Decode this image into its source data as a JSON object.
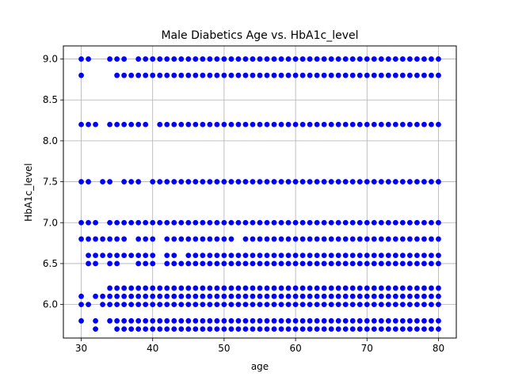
{
  "chart_data": {
    "type": "scatter",
    "title": "Male Diabetics Age vs. HbA1c_level",
    "xlabel": "age",
    "ylabel": "HbA1c_level",
    "xlim": [
      27.5,
      82.5
    ],
    "ylim": [
      5.59,
      9.16
    ],
    "xticks": [
      30,
      40,
      50,
      60,
      70,
      80
    ],
    "yticks": [
      6.0,
      6.5,
      7.0,
      7.5,
      8.0,
      8.5,
      9.0
    ],
    "xtick_labels": [
      "30",
      "40",
      "50",
      "60",
      "70",
      "80"
    ],
    "ytick_labels": [
      "6.0",
      "6.5",
      "7.0",
      "7.5",
      "8.0",
      "8.5",
      "9.0"
    ],
    "grid": true,
    "marker_color": "#0000ff",
    "levels": [
      {
        "y": 9.0,
        "ages": [
          30,
          31,
          34,
          35,
          36,
          38,
          39,
          40,
          41,
          42,
          43,
          44,
          45,
          46,
          47,
          48,
          49,
          50,
          51,
          52,
          53,
          54,
          55,
          56,
          57,
          58,
          59,
          60,
          61,
          62,
          63,
          64,
          65,
          66,
          67,
          68,
          69,
          70,
          71,
          72,
          73,
          74,
          75,
          76,
          77,
          78,
          79,
          80
        ]
      },
      {
        "y": 8.8,
        "ages": [
          30,
          35,
          36,
          37,
          38,
          39,
          40,
          41,
          42,
          43,
          44,
          45,
          46,
          47,
          48,
          49,
          50,
          51,
          52,
          53,
          54,
          55,
          56,
          57,
          58,
          59,
          60,
          61,
          62,
          63,
          64,
          65,
          66,
          67,
          68,
          69,
          70,
          71,
          72,
          73,
          74,
          75,
          76,
          77,
          78,
          79,
          80
        ]
      },
      {
        "y": 8.2,
        "ages": [
          30,
          31,
          32,
          34,
          35,
          36,
          37,
          38,
          39,
          41,
          42,
          43,
          44,
          45,
          46,
          47,
          48,
          49,
          50,
          51,
          52,
          53,
          54,
          55,
          56,
          57,
          58,
          59,
          60,
          61,
          62,
          63,
          64,
          65,
          66,
          67,
          68,
          69,
          70,
          71,
          72,
          73,
          74,
          75,
          76,
          77,
          78,
          79,
          80
        ]
      },
      {
        "y": 7.5,
        "ages": [
          30,
          31,
          33,
          34,
          36,
          37,
          38,
          40,
          41,
          42,
          43,
          44,
          45,
          46,
          47,
          48,
          49,
          50,
          51,
          52,
          53,
          54,
          55,
          56,
          57,
          58,
          59,
          60,
          61,
          62,
          63,
          64,
          65,
          66,
          67,
          68,
          69,
          70,
          71,
          72,
          73,
          74,
          75,
          76,
          77,
          78,
          79,
          80
        ]
      },
      {
        "y": 7.0,
        "ages": [
          30,
          31,
          32,
          34,
          35,
          36,
          37,
          38,
          39,
          40,
          41,
          42,
          43,
          44,
          45,
          46,
          47,
          48,
          49,
          50,
          51,
          52,
          53,
          54,
          55,
          56,
          57,
          58,
          59,
          60,
          61,
          62,
          63,
          64,
          65,
          66,
          67,
          68,
          69,
          70,
          71,
          72,
          73,
          74,
          75,
          76,
          77,
          78,
          79,
          80
        ]
      },
      {
        "y": 6.8,
        "ages": [
          30,
          31,
          32,
          33,
          34,
          35,
          36,
          38,
          39,
          40,
          42,
          43,
          44,
          45,
          46,
          47,
          48,
          49,
          50,
          51,
          53,
          54,
          55,
          56,
          57,
          58,
          59,
          60,
          61,
          62,
          63,
          64,
          65,
          66,
          67,
          68,
          69,
          70,
          71,
          72,
          73,
          74,
          75,
          76,
          77,
          78,
          79,
          80
        ]
      },
      {
        "y": 6.6,
        "ages": [
          31,
          32,
          33,
          34,
          35,
          36,
          37,
          38,
          39,
          40,
          42,
          43,
          45,
          46,
          47,
          48,
          49,
          50,
          51,
          52,
          53,
          54,
          55,
          56,
          57,
          58,
          59,
          60,
          61,
          62,
          63,
          64,
          65,
          66,
          67,
          68,
          69,
          70,
          71,
          72,
          73,
          74,
          75,
          76,
          77,
          78,
          79,
          80
        ]
      },
      {
        "y": 6.5,
        "ages": [
          31,
          32,
          34,
          35,
          38,
          39,
          40,
          42,
          43,
          44,
          45,
          46,
          47,
          48,
          49,
          50,
          51,
          52,
          53,
          54,
          55,
          56,
          57,
          58,
          59,
          60,
          61,
          62,
          63,
          64,
          65,
          66,
          67,
          68,
          69,
          70,
          71,
          72,
          73,
          74,
          75,
          76,
          77,
          78,
          79,
          80
        ]
      },
      {
        "y": 6.2,
        "ages": [
          34,
          35,
          36,
          37,
          38,
          39,
          40,
          41,
          42,
          43,
          44,
          45,
          46,
          47,
          48,
          49,
          50,
          51,
          52,
          53,
          54,
          55,
          56,
          57,
          58,
          59,
          60,
          61,
          62,
          63,
          64,
          65,
          66,
          67,
          68,
          69,
          70,
          71,
          72,
          73,
          74,
          75,
          76,
          77,
          78,
          79,
          80
        ]
      },
      {
        "y": 6.1,
        "ages": [
          30,
          32,
          33,
          34,
          35,
          36,
          37,
          38,
          39,
          40,
          41,
          42,
          43,
          44,
          45,
          46,
          47,
          48,
          49,
          50,
          51,
          52,
          53,
          54,
          55,
          56,
          57,
          58,
          59,
          60,
          61,
          62,
          63,
          64,
          65,
          66,
          67,
          68,
          69,
          70,
          71,
          72,
          73,
          74,
          75,
          76,
          77,
          78,
          79,
          80
        ]
      },
      {
        "y": 6.0,
        "ages": [
          30,
          31,
          33,
          34,
          35,
          36,
          37,
          38,
          39,
          40,
          41,
          42,
          43,
          44,
          45,
          46,
          47,
          48,
          49,
          50,
          51,
          52,
          53,
          54,
          55,
          56,
          57,
          58,
          59,
          60,
          61,
          62,
          63,
          64,
          65,
          66,
          67,
          68,
          69,
          70,
          71,
          72,
          73,
          74,
          75,
          76,
          77,
          78,
          79,
          80
        ]
      },
      {
        "y": 5.8,
        "ages": [
          30,
          32,
          34,
          35,
          36,
          37,
          38,
          39,
          40,
          41,
          42,
          43,
          44,
          45,
          46,
          47,
          48,
          49,
          50,
          51,
          52,
          53,
          54,
          55,
          56,
          57,
          58,
          59,
          60,
          61,
          62,
          63,
          64,
          65,
          66,
          67,
          68,
          69,
          70,
          71,
          72,
          73,
          74,
          75,
          76,
          77,
          78,
          79,
          80
        ]
      },
      {
        "y": 5.7,
        "ages": [
          32,
          35,
          36,
          37,
          38,
          39,
          40,
          41,
          42,
          43,
          44,
          45,
          46,
          47,
          48,
          49,
          50,
          51,
          52,
          53,
          54,
          55,
          56,
          57,
          58,
          59,
          60,
          61,
          62,
          63,
          64,
          65,
          66,
          67,
          68,
          69,
          70,
          71,
          72,
          73,
          74,
          75,
          76,
          77,
          78,
          79,
          80
        ]
      }
    ]
  }
}
